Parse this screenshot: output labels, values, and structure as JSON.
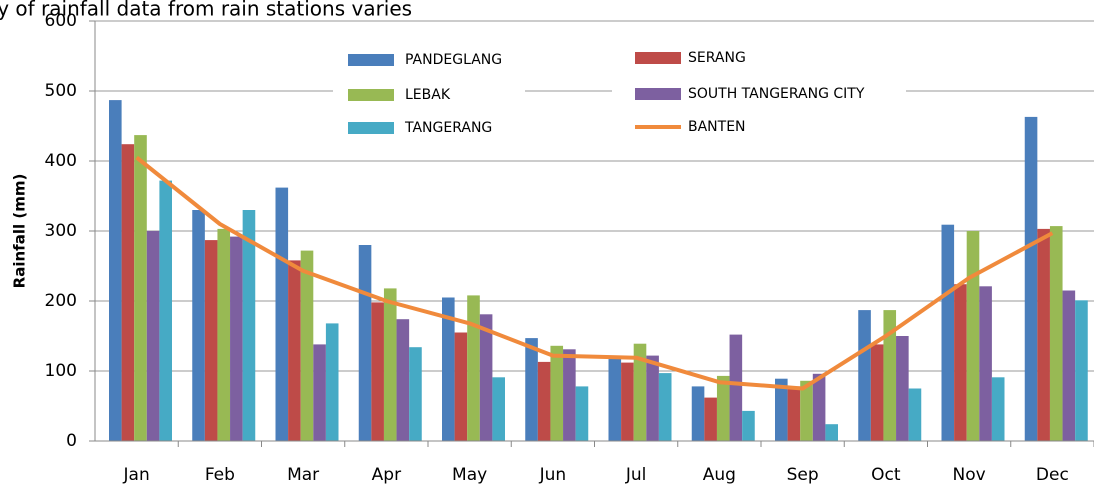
{
  "chart_data": {
    "type": "bar",
    "title": "bility of rainfall data from rain stations varies",
    "y_label": "Rainfall (mm)",
    "categories": [
      "Jan",
      "Feb",
      "Mar",
      "Apr",
      "May",
      "Jun",
      "Jul",
      "Aug",
      "Sep",
      "Oct",
      "Nov",
      "Dec"
    ],
    "series": [
      {
        "name": "PANDEGLANG",
        "color": "#4a7ebb",
        "values": [
          487,
          330,
          362,
          280,
          205,
          147,
          118,
          78,
          89,
          187,
          309,
          463
        ]
      },
      {
        "name": "SERANG",
        "color": "#be4b48",
        "values": [
          424,
          287,
          258,
          198,
          155,
          113,
          112,
          62,
          78,
          138,
          224,
          303
        ]
      },
      {
        "name": "LEBAK",
        "color": "#98b954",
        "values": [
          437,
          303,
          272,
          218,
          208,
          136,
          139,
          93,
          86,
          187,
          300,
          307
        ]
      },
      {
        "name": "SOUTH TANGERANG CITY",
        "color": "#7d60a0",
        "values": [
          300,
          292,
          138,
          174,
          181,
          131,
          122,
          152,
          96,
          150,
          221,
          215
        ]
      },
      {
        "name": "TANGERANG",
        "color": "#46aac5",
        "values": [
          372,
          330,
          168,
          134,
          91,
          78,
          97,
          43,
          24,
          75,
          91,
          201
        ]
      }
    ],
    "line_series": {
      "name": "BANTEN",
      "color": "#f08a3c",
      "values": [
        405,
        310,
        243,
        200,
        168,
        122,
        119,
        84,
        75,
        150,
        233,
        297
      ]
    },
    "ylim": [
      0,
      600
    ],
    "yticks": [
      0,
      100,
      200,
      300,
      400,
      500,
      600
    ],
    "grid": true
  }
}
